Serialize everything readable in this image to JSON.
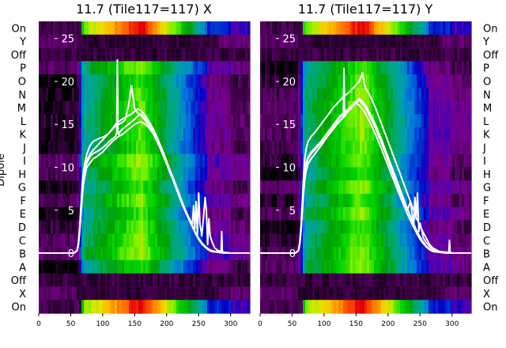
{
  "chart_data": [
    {
      "type": "heatmap",
      "title": "11.7 (Tile117=117) X",
      "ylabel": "Dipole",
      "row_labels": [
        "On",
        "Y",
        "Off",
        "P",
        "O",
        "N",
        "M",
        "L",
        "K",
        "J",
        "I",
        "H",
        "G",
        "F",
        "E",
        "D",
        "C",
        "B",
        "A",
        "Off",
        "X",
        "On"
      ],
      "xticks": [
        0,
        50,
        100,
        150,
        200,
        250,
        300
      ],
      "xlim": [
        0,
        330
      ],
      "overlay_yticks": [
        0,
        5,
        10,
        15,
        20,
        25
      ],
      "overlay_ylim": [
        -7,
        27
      ],
      "series": [
        {
          "x": [
            0,
            55,
            60,
            62,
            64,
            66,
            68,
            70,
            72,
            75,
            80,
            85,
            90,
            95,
            100,
            105,
            110,
            115,
            120,
            125,
            130,
            135,
            140,
            145,
            150,
            155,
            160,
            165,
            170,
            175,
            180,
            185,
            190,
            195,
            200,
            205,
            210,
            215,
            220,
            225,
            230,
            235,
            240,
            242,
            244,
            246,
            248,
            250,
            252,
            255,
            258,
            260,
            262,
            264,
            266,
            268,
            270,
            275,
            280,
            285,
            290,
            295,
            300,
            310,
            330
          ],
          "y": [
            0,
            0,
            0.3,
            1,
            2.5,
            4.5,
            6.5,
            8,
            9,
            10,
            10.5,
            11,
            11.2,
            11.5,
            11.8,
            12.2,
            12.6,
            13,
            13.3,
            13.6,
            13.8,
            14.1,
            14.4,
            14.7,
            15,
            15.2,
            15.3,
            15.1,
            14.8,
            14.3,
            13.8,
            13,
            12.2,
            11.3,
            10.4,
            9.5,
            8.6,
            7.7,
            6.7,
            5.8,
            4.9,
            4.1,
            3.3,
            5.5,
            2.8,
            6,
            2.2,
            7,
            3.4,
            2,
            4.5,
            6.5,
            5,
            1,
            4,
            2,
            1.5,
            0.6,
            0.3,
            0.2,
            0.1,
            0.05,
            0,
            0,
            0
          ]
        },
        {
          "x": [
            0,
            55,
            60,
            62,
            64,
            66,
            68,
            70,
            72,
            75,
            80,
            85,
            90,
            95,
            100,
            105,
            110,
            115,
            120,
            125,
            130,
            135,
            140,
            145,
            150,
            155,
            160,
            165,
            170,
            175,
            180,
            185,
            190,
            195,
            200,
            205,
            210,
            215,
            220,
            225,
            230,
            235,
            240,
            245,
            250,
            255,
            260,
            265,
            270,
            280,
            290,
            300,
            330
          ],
          "y": [
            0,
            0,
            0.3,
            1.2,
            3,
            5.5,
            8,
            9.5,
            10.5,
            11.5,
            12.5,
            13,
            13.2,
            13.4,
            13.5,
            13.7,
            14,
            14.5,
            15,
            15.3,
            15.6,
            15.8,
            16,
            16.2,
            16.5,
            16.8,
            16.6,
            16.2,
            15.6,
            15,
            14.3,
            13.5,
            12.6,
            11.7,
            10.7,
            9.7,
            8.8,
            7.8,
            6.8,
            5.8,
            4.8,
            4,
            3.2,
            2.4,
            1.7,
            1.1,
            0.7,
            0.4,
            0.2,
            0.1,
            0,
            0,
            0
          ]
        },
        {
          "x": [
            0,
            55,
            60,
            62,
            64,
            66,
            68,
            70,
            72,
            75,
            80,
            85,
            90,
            95,
            100,
            105,
            110,
            115,
            120,
            122,
            123,
            124,
            125,
            126,
            128,
            130,
            135,
            140,
            145,
            150,
            155,
            160,
            165,
            170,
            175,
            180,
            185,
            190,
            195,
            200,
            205,
            210,
            215,
            220,
            225,
            230,
            235,
            240,
            245,
            250,
            255,
            260,
            265,
            270,
            280,
            290,
            300,
            330
          ],
          "y": [
            0,
            0,
            0.3,
            1,
            2.6,
            4.8,
            7,
            8.6,
            9.6,
            10.5,
            11.2,
            11.6,
            11.8,
            12,
            12.3,
            12.6,
            13,
            13.3,
            13.6,
            14,
            22.5,
            14.2,
            13.8,
            14,
            14.2,
            14.4,
            14.7,
            15,
            15.3,
            15.6,
            16,
            16.2,
            15.9,
            15.3,
            14.7,
            14,
            13.2,
            12.3,
            11.4,
            10.4,
            9.4,
            8.5,
            7.5,
            6.5,
            5.6,
            4.7,
            3.9,
            3.1,
            2.3,
            1.6,
            1.1,
            0.7,
            0.4,
            0.2,
            0.1,
            0,
            0,
            0
          ]
        },
        {
          "x": [
            0,
            55,
            60,
            62,
            64,
            66,
            68,
            70,
            72,
            75,
            80,
            85,
            90,
            95,
            100,
            105,
            110,
            115,
            120,
            125,
            130,
            135,
            140,
            145,
            150,
            155,
            160,
            165,
            170,
            175,
            180,
            185,
            190,
            195,
            200,
            205,
            210,
            215,
            220,
            225,
            230,
            235,
            240,
            245,
            250,
            255,
            260,
            265,
            270,
            280,
            285,
            286,
            287,
            290,
            300,
            330
          ],
          "y": [
            0,
            0,
            0.3,
            1,
            2.8,
            5,
            7.2,
            8.8,
            9.8,
            10.8,
            11.5,
            12,
            12.4,
            12.8,
            13.2,
            13.6,
            14,
            14.4,
            14.8,
            15,
            15.2,
            15.5,
            17,
            19.5,
            16.8,
            16.3,
            16,
            15.6,
            15.1,
            14.5,
            13.8,
            13,
            12.2,
            11.3,
            10.4,
            9.4,
            8.5,
            7.5,
            6.6,
            5.6,
            4.7,
            3.9,
            3.1,
            2.4,
            1.7,
            1.2,
            0.8,
            0.5,
            0.3,
            0.1,
            0.1,
            2.5,
            0.1,
            0,
            0,
            0
          ]
        }
      ]
    },
    {
      "type": "heatmap",
      "title": "11.7 (Tile117=117) Y",
      "row_labels": [
        "On",
        "Y",
        "Off",
        "P",
        "O",
        "N",
        "M",
        "L",
        "K",
        "J",
        "I",
        "H",
        "G",
        "F",
        "E",
        "D",
        "C",
        "B",
        "A",
        "Off",
        "X",
        "On"
      ],
      "xticks": [
        0,
        50,
        100,
        150,
        200,
        250,
        300
      ],
      "xlim": [
        0,
        330
      ],
      "overlay_yticks": [
        0,
        5,
        10,
        15,
        20,
        25
      ],
      "overlay_ylim": [
        -7,
        27
      ],
      "series": [
        {
          "x": [
            0,
            55,
            60,
            62,
            64,
            66,
            68,
            70,
            72,
            75,
            80,
            85,
            90,
            95,
            100,
            105,
            110,
            115,
            120,
            125,
            130,
            135,
            140,
            145,
            150,
            155,
            160,
            165,
            170,
            175,
            180,
            185,
            190,
            195,
            200,
            205,
            210,
            215,
            220,
            225,
            230,
            235,
            240,
            245,
            250,
            255,
            260,
            265,
            270,
            280,
            290,
            300,
            330
          ],
          "y": [
            0,
            0,
            0.3,
            1.2,
            3,
            5.5,
            8,
            9.5,
            10.5,
            11.2,
            11.8,
            12.2,
            12.6,
            13,
            13.5,
            14,
            14.5,
            15,
            15.5,
            16,
            16.3,
            16.6,
            17,
            17.3,
            17.7,
            18,
            17.7,
            17.2,
            16.5,
            15.8,
            15,
            14.1,
            13.2,
            12.2,
            11.2,
            10.2,
            9.2,
            8.2,
            7.2,
            6.2,
            5.2,
            4.3,
            3.4,
            2.6,
            1.9,
            1.3,
            0.8,
            0.5,
            0.2,
            0.1,
            0,
            0,
            0
          ]
        },
        {
          "x": [
            0,
            55,
            60,
            62,
            64,
            66,
            68,
            70,
            72,
            75,
            80,
            85,
            90,
            95,
            100,
            105,
            110,
            115,
            120,
            125,
            130,
            135,
            140,
            145,
            150,
            155,
            160,
            162,
            164,
            165,
            170,
            175,
            180,
            185,
            190,
            195,
            200,
            205,
            210,
            215,
            220,
            225,
            230,
            235,
            240,
            245,
            250,
            255,
            260,
            265,
            270,
            280,
            290,
            300,
            330
          ],
          "y": [
            0,
            0,
            0.3,
            1.3,
            3.2,
            6,
            9,
            11,
            12.2,
            13,
            13.6,
            14,
            14.5,
            15,
            15.5,
            16,
            16.5,
            17,
            17.4,
            17.8,
            18.2,
            18.5,
            18.8,
            19.2,
            19.6,
            20,
            21,
            20,
            19.4,
            19.2,
            18.6,
            17.8,
            17,
            16,
            15,
            14,
            13,
            12,
            11,
            10,
            9,
            8,
            7,
            6,
            5,
            4,
            3.2,
            2.4,
            1.7,
            1,
            0.6,
            0.2,
            0.1,
            0,
            0
          ]
        },
        {
          "x": [
            0,
            55,
            60,
            62,
            64,
            66,
            68,
            70,
            72,
            75,
            80,
            85,
            90,
            95,
            100,
            105,
            110,
            115,
            120,
            125,
            130,
            131,
            132,
            133,
            135,
            140,
            145,
            150,
            155,
            160,
            165,
            170,
            175,
            180,
            185,
            190,
            195,
            200,
            205,
            210,
            215,
            220,
            225,
            230,
            235,
            240,
            242,
            244,
            246,
            248,
            250,
            255,
            260,
            265,
            270,
            280,
            290,
            300,
            330
          ],
          "y": [
            0,
            0,
            0.3,
            1.1,
            2.8,
            5.2,
            7.6,
            9.2,
            10.2,
            11,
            11.6,
            12,
            12.4,
            12.8,
            13.2,
            13.6,
            14,
            14.5,
            15,
            15.4,
            15.8,
            21.5,
            15.9,
            16,
            16.3,
            16.7,
            17.1,
            17.5,
            17.8,
            17.4,
            16.9,
            16.2,
            15.4,
            14.6,
            13.7,
            12.8,
            11.8,
            10.8,
            9.8,
            8.8,
            7.8,
            6.8,
            5.8,
            5,
            6,
            3.2,
            6.5,
            4,
            7,
            2.5,
            3.5,
            1.8,
            1.2,
            0.8,
            0.4,
            0.2,
            0,
            0,
            0
          ]
        },
        {
          "x": [
            0,
            55,
            60,
            62,
            64,
            66,
            68,
            70,
            72,
            75,
            80,
            85,
            90,
            95,
            100,
            105,
            110,
            115,
            120,
            125,
            130,
            135,
            140,
            145,
            150,
            155,
            160,
            165,
            170,
            175,
            180,
            185,
            190,
            195,
            200,
            205,
            210,
            215,
            220,
            225,
            230,
            235,
            240,
            245,
            250,
            255,
            260,
            265,
            270,
            280,
            290,
            295,
            296,
            297,
            300,
            330
          ],
          "y": [
            0,
            0,
            0.3,
            1,
            2.6,
            4.8,
            7,
            8.6,
            9.6,
            10.4,
            11,
            11.5,
            12,
            12.5,
            13,
            13.6,
            14.2,
            14.8,
            15.3,
            15.8,
            16.2,
            16.6,
            17,
            17.3,
            17.5,
            17.2,
            16.8,
            16.2,
            15.5,
            14.7,
            13.9,
            13,
            12.1,
            11.1,
            10.2,
            9.2,
            8.3,
            7.3,
            6.4,
            5.5,
            4.6,
            3.8,
            3,
            2.3,
            1.6,
            1.1,
            0.7,
            0.4,
            0.2,
            0.1,
            0.1,
            0.1,
            1.5,
            0.1,
            0,
            0
          ]
        }
      ]
    }
  ]
}
